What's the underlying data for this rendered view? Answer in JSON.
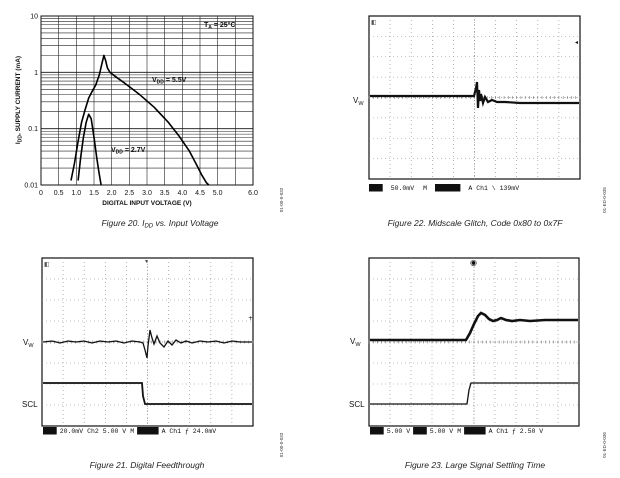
{
  "chart_data": [
    {
      "id": "fig20",
      "type": "line",
      "caption": "Figure 20. I",
      "caption_sub": "DD",
      "caption_rest": " vs. Input Voltage",
      "xlabel": "DIGITAL INPUT VOLTAGE (V)",
      "ylabel_main": "I",
      "ylabel_sub": "DD",
      "ylabel_rest": ", SUPPLY CURRENT (mA)",
      "xlim": [
        0,
        6.0
      ],
      "ylim": [
        0.01,
        10
      ],
      "yscale": "log",
      "x_ticks": [
        "0",
        "0.5",
        "1.0",
        "1.5",
        "2.0",
        "2.5",
        "3.0",
        "3.5",
        "4.0",
        "4.5",
        "5.0"
      ],
      "x_tick_values": [
        0,
        0.5,
        1.0,
        1.5,
        2.0,
        2.5,
        3.0,
        3.5,
        4.0,
        4.5,
        5.0
      ],
      "y_ticks": [
        "10",
        "1",
        "0.1",
        "0.01"
      ],
      "y_tick_values": [
        10,
        1,
        0.1,
        0.01
      ],
      "annotations": {
        "temp_main": "T",
        "temp_sub": "A",
        "temp_rest": " = 25°C",
        "vdd1_main": "V",
        "vdd1_sub": "DD",
        "vdd1_rest": " = 5.5V",
        "vdd2_main": "V",
        "vdd2_sub": "DD",
        "vdd2_rest": " = 2.7V"
      },
      "series": [
        {
          "x": [
            0.85,
            0.95,
            1.05,
            1.15,
            1.25,
            1.35,
            1.45,
            1.55,
            1.65,
            1.72,
            1.78,
            1.83,
            1.88,
            1.95,
            2.1,
            2.4,
            2.8,
            3.2,
            3.6,
            3.9,
            4.2,
            4.4,
            4.55,
            4.68,
            4.75
          ],
          "y": [
            0.012,
            0.025,
            0.06,
            0.13,
            0.22,
            0.35,
            0.46,
            0.6,
            0.9,
            1.4,
            2.0,
            1.6,
            1.2,
            1.0,
            0.85,
            0.62,
            0.4,
            0.24,
            0.13,
            0.075,
            0.04,
            0.023,
            0.015,
            0.011,
            0.01
          ]
        },
        {
          "x": [
            1.05,
            1.12,
            1.2,
            1.28,
            1.35,
            1.42,
            1.5,
            1.58,
            1.64,
            1.7
          ],
          "y": [
            0.012,
            0.03,
            0.07,
            0.13,
            0.18,
            0.15,
            0.07,
            0.03,
            0.017,
            0.01
          ]
        }
      ]
    }
  ],
  "scopes": {
    "fig21": {
      "caption": "Figure 21. Digital Feedthrough",
      "ch1_label_main": "V",
      "ch1_label_sub": "W",
      "ch2_label": "SCL",
      "status": [
        {
          "text": "Ch1",
          "box": true
        },
        {
          "text": "20.0mV",
          "box": false
        },
        {
          "text": "Ch2",
          "box": false
        },
        {
          "text": "5.00 V",
          "box": false
        },
        {
          "text": "M",
          "box": false
        },
        {
          "text": "100ns",
          "box": true
        },
        {
          "text": "A  Ch1  ƒ  24.0mV",
          "box": false
        }
      ],
      "side_code": "01-00-0-033"
    },
    "fig22": {
      "caption": "Figure 22. Midscale Glitch, Code 0x80 to 0x7F",
      "ch1_label_main": "V",
      "ch1_label_sub": "W",
      "status": [
        {
          "text": "Ch1",
          "box": true
        },
        {
          "text": "50.0mV",
          "box": false
        },
        {
          "text": "M",
          "box": false
        },
        {
          "text": "1.00μs",
          "box": true
        },
        {
          "text": "A  Ch1  \\  139mV",
          "box": false
        }
      ],
      "side_code": "01-ED-0-035"
    },
    "fig23": {
      "caption": "Figure 23. Large Signal Settling Time",
      "ch1_label_main": "V",
      "ch1_label_sub": "W",
      "ch2_label": "SCL",
      "status": [
        {
          "text": "Ch1",
          "box": true
        },
        {
          "text": "5.00 V",
          "box": false
        },
        {
          "text": "Ch2",
          "box": true
        },
        {
          "text": "5.00 V",
          "box": false
        },
        {
          "text": "M",
          "box": false
        },
        {
          "text": "100ns",
          "box": true
        },
        {
          "text": "A  Ch1  ƒ  2.50 V",
          "box": false
        }
      ],
      "side_code": "01-ED-0-036"
    }
  },
  "fig20_side_code": "01-00-0-032"
}
